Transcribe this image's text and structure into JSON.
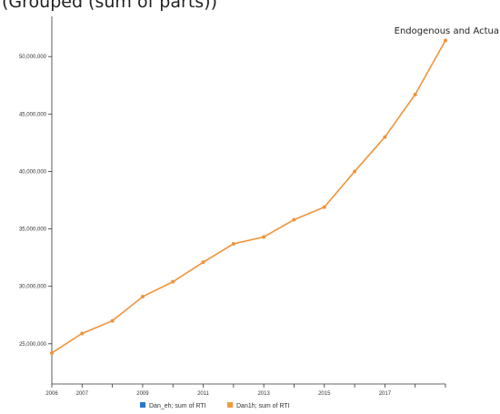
{
  "header": {
    "title": "(Grouped (sum of parts))"
  },
  "chart_data": {
    "type": "line",
    "x": [
      2006,
      2007,
      2008,
      2009,
      2010,
      2011,
      2012,
      2013,
      2014,
      2015,
      2016,
      2017,
      2018
    ],
    "xtick_labels": [
      "2006",
      "2007",
      "2009",
      "2011",
      "2013",
      "2015",
      "2017"
    ],
    "ytick_labels": [
      "25,000,000",
      "30,000,000",
      "35,000,000",
      "40,000,000",
      "45,000,000",
      "50,000,000"
    ],
    "yticks": [
      25000000,
      30000000,
      35000000,
      40000000,
      45000000,
      50000000
    ],
    "ylim": [
      21500000,
      53500000
    ],
    "xlim": [
      2006,
      2019
    ],
    "series_label": "Endogenous and Actua",
    "series": [
      {
        "name": "Dan1h; sum of RTI",
        "color": "#f0933a",
        "x": [
          2006,
          2007,
          2008,
          2009,
          2010,
          2011,
          2012,
          2013,
          2014,
          2015,
          2016,
          2017,
          2018,
          2019
        ],
        "values": [
          24200000,
          25900000,
          27000000,
          29100000,
          30400000,
          32100000,
          33700000,
          34300000,
          35800000,
          36900000,
          40000000,
          43000000,
          46700000,
          51400000
        ]
      }
    ],
    "legend": [
      {
        "label": "Dan_eh; sum of RTI",
        "color": "#2878c8"
      },
      {
        "label": "Dan1h; sum of RTI",
        "color": "#f39a3b"
      }
    ],
    "legend_position": "bottom",
    "grid": false
  }
}
